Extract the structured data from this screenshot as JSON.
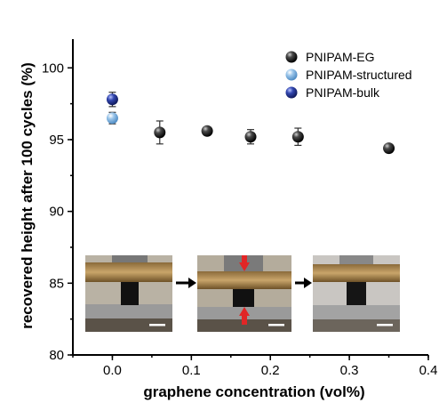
{
  "chart_data": {
    "type": "scatter",
    "xlabel": "graphene concentration (vol%)",
    "ylabel": "recovered height after 100 cycles (%)",
    "xlim": [
      -0.05,
      0.4
    ],
    "ylim": [
      80,
      102
    ],
    "xticks": [
      "0.0",
      "0.1",
      "0.2",
      "0.3",
      "0.4"
    ],
    "xtick_values": [
      0.0,
      0.1,
      0.2,
      0.3,
      0.4
    ],
    "yticks": [
      "80",
      "85",
      "90",
      "95",
      "100"
    ],
    "ytick_values": [
      80,
      85,
      90,
      95,
      100
    ],
    "legend_position": "top-right",
    "series": [
      {
        "name": "PNIPAM-EG",
        "color": "#111111",
        "x": [
          0.06,
          0.12,
          0.175,
          0.235,
          0.35
        ],
        "y": [
          95.5,
          95.6,
          95.2,
          95.2,
          94.4
        ],
        "err": [
          0.8,
          0.2,
          0.5,
          0.6,
          0.0
        ]
      },
      {
        "name": "PNIPAM-structured",
        "color": "#7fb3df",
        "x": [
          0.0
        ],
        "y": [
          96.5
        ],
        "err": [
          0.4
        ]
      },
      {
        "name": "PNIPAM-bulk",
        "color": "#2b3f9e",
        "x": [
          0.0
        ],
        "y": [
          97.8
        ],
        "err": [
          0.5
        ]
      }
    ],
    "inset_photos": [
      "photo-1",
      "photo-2",
      "photo-3"
    ]
  }
}
